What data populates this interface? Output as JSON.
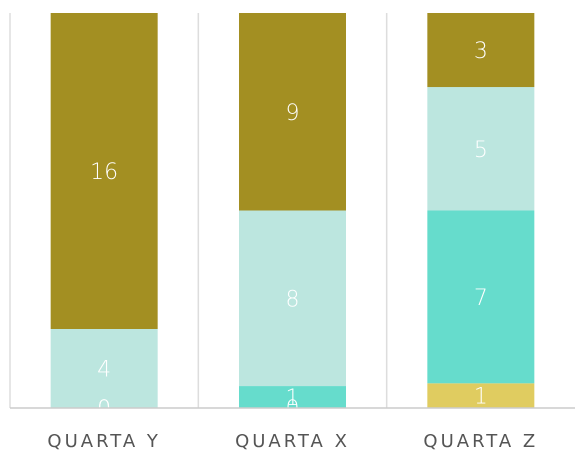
{
  "chart_data": {
    "type": "bar",
    "stacking": "percent",
    "categories": [
      "QUARTA Y",
      "QUARTA X",
      "QUARTA Z"
    ],
    "series": [
      {
        "color": "#e0cc60",
        "values": [
          0,
          0,
          1
        ]
      },
      {
        "color": "#66dccc",
        "values": [
          0,
          1,
          7
        ]
      },
      {
        "color": "#bce6df",
        "values": [
          4,
          8,
          5
        ]
      },
      {
        "color": "#a38f22",
        "values": [
          16,
          9,
          3
        ]
      }
    ]
  }
}
